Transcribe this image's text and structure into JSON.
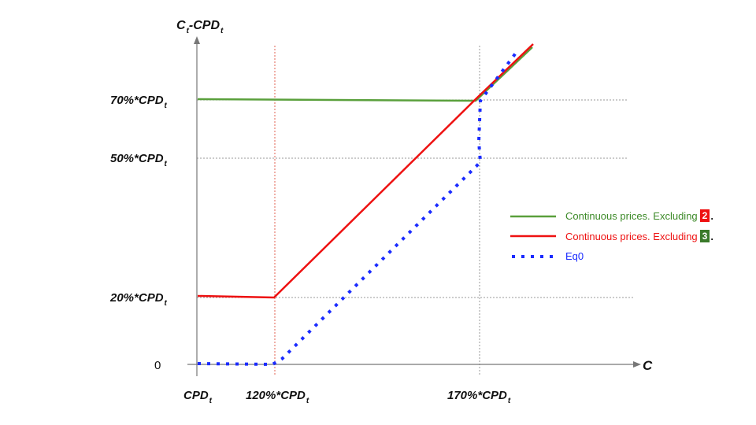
{
  "axes": {
    "y_label_main": "C",
    "y_label_sub1": "t",
    "y_label_mid": "-CPD",
    "y_label_sub2": "t",
    "x_label": "C",
    "zero_label": "0"
  },
  "y_ticks": [
    {
      "main": "70%*CPD",
      "sub": "t"
    },
    {
      "main": "50%*CPD",
      "sub": "t"
    },
    {
      "main": "20%*CPD",
      "sub": "t"
    }
  ],
  "x_ticks": [
    {
      "main": "CPD",
      "sub": "t"
    },
    {
      "main": "120%*CPD",
      "sub": "t"
    },
    {
      "main": "170%*CPD",
      "sub": "t"
    }
  ],
  "legend": [
    {
      "text": "Continuous prices. Excluding",
      "badge": "2",
      "badge_color": "#ee1111",
      "line_color": "#5aa03c",
      "text_color": "#3c8a28",
      "suffix": "."
    },
    {
      "text": "Continuous prices. Excluding",
      "badge": "3",
      "badge_color": "#3a7a2a",
      "line_color": "#ee1111",
      "text_color": "#ee1111",
      "suffix": "."
    },
    {
      "text": "Eq0",
      "line_color": "#1a2bff",
      "text_color": "#1a2bff"
    }
  ],
  "colors": {
    "green": "#5aa03c",
    "red": "#ee1111",
    "blue": "#1a2bff"
  }
}
